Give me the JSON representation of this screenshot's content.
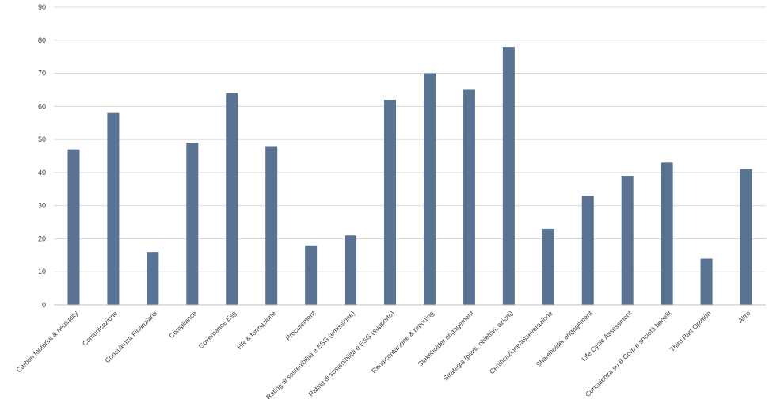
{
  "chart_data": {
    "type": "bar",
    "categories": [
      "Carbon footprint & neutrality",
      "Comunicazione",
      "Consulenza Finanziaria",
      "Compliance",
      "Governance Esg",
      "HR & formazione",
      "Procurement",
      "Rating di sostenibilità e ESG (emissione)",
      "Rating di sostenibilità e ESG (supporto)",
      "Rendicontazione & reporting",
      "Stakeholder engagement",
      "Strategia (piani, obiettivi, azioni)",
      "Certificazione/asseverazione",
      "Shareholder engagement",
      "Life Cycle Assessment",
      "Consulenza su B Corp e società benefit",
      "Third Part Opinion",
      "Altro"
    ],
    "values": [
      47,
      58,
      16,
      49,
      64,
      48,
      18,
      21,
      62,
      70,
      65,
      78,
      23,
      33,
      39,
      43,
      14,
      41
    ],
    "ylim": [
      0,
      90
    ],
    "yticks": [
      0,
      10,
      20,
      30,
      40,
      50,
      60,
      70,
      80,
      90
    ],
    "title": "",
    "xlabel": "",
    "ylabel": "",
    "grid": true,
    "bar_color": "#5a7392"
  }
}
